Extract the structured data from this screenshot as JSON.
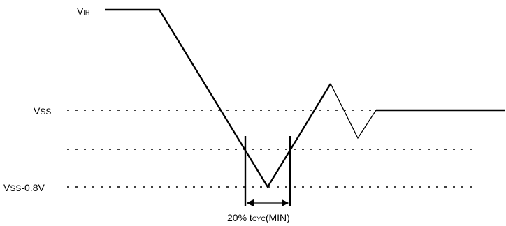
{
  "labels": {
    "vih": {
      "main": "V",
      "sub": "IH"
    },
    "vss": {
      "main": "V",
      "sub": "SS"
    },
    "vss_neg": {
      "main": "V",
      "sub": "SS",
      "suffix": "-0.8V"
    },
    "timing": {
      "prefix": "20% ",
      "t": "t",
      "sub": "CYC",
      "suffix": "(MIN)"
    }
  }
}
